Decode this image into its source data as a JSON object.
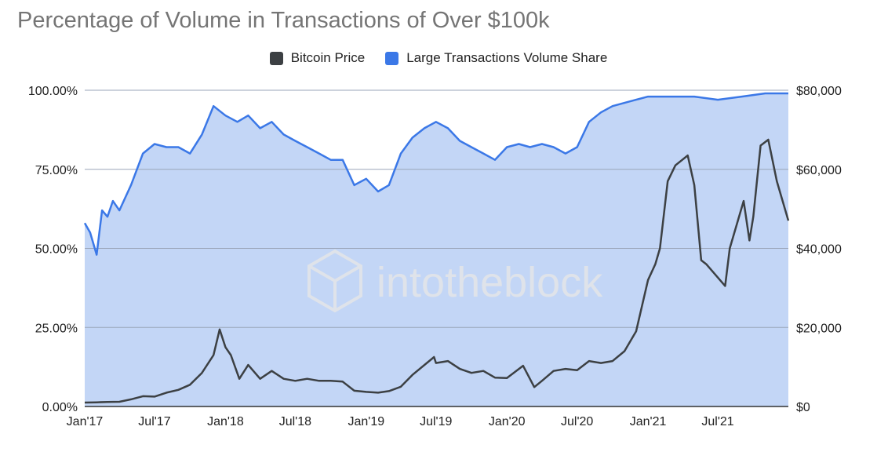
{
  "chart_data": {
    "type": "line",
    "title": "Percentage of Volume in Transactions of Over $100k",
    "watermark": "intotheblock",
    "x_tick_labels": [
      "Jan'17",
      "Jul'17",
      "Jan'18",
      "Jul'18",
      "Jan'19",
      "Jul'19",
      "Jan'20",
      "Jul'20",
      "Jan'21",
      "Jul'21"
    ],
    "y_left_tick_labels": [
      "0.00%",
      "25.00%",
      "50.00%",
      "75.00%",
      "100.00%"
    ],
    "y_left_lim": [
      0,
      100
    ],
    "y_right_tick_labels": [
      "$0",
      "$20,000",
      "$40,000",
      "$60,000",
      "$80,000"
    ],
    "y_right_lim": [
      0,
      80000
    ],
    "grid": true,
    "legend_position": "top-center",
    "series": [
      {
        "name": "Bitcoin Price",
        "color": "#3c4043",
        "axis": "right",
        "points": [
          [
            "2017-01-01",
            1000
          ],
          [
            "2017-02-01",
            1050
          ],
          [
            "2017-03-01",
            1150
          ],
          [
            "2017-04-01",
            1200
          ],
          [
            "2017-05-01",
            1800
          ],
          [
            "2017-06-01",
            2600
          ],
          [
            "2017-07-01",
            2500
          ],
          [
            "2017-08-01",
            3500
          ],
          [
            "2017-09-01",
            4200
          ],
          [
            "2017-10-01",
            5500
          ],
          [
            "2017-11-01",
            8500
          ],
          [
            "2017-12-01",
            13000
          ],
          [
            "2017-12-17",
            19500
          ],
          [
            "2018-01-01",
            15000
          ],
          [
            "2018-01-15",
            13000
          ],
          [
            "2018-02-06",
            7000
          ],
          [
            "2018-03-01",
            10500
          ],
          [
            "2018-04-01",
            7000
          ],
          [
            "2018-05-01",
            9000
          ],
          [
            "2018-06-01",
            7000
          ],
          [
            "2018-07-01",
            6500
          ],
          [
            "2018-08-01",
            7000
          ],
          [
            "2018-09-01",
            6500
          ],
          [
            "2018-10-01",
            6500
          ],
          [
            "2018-11-01",
            6300
          ],
          [
            "2018-12-01",
            4000
          ],
          [
            "2019-01-01",
            3700
          ],
          [
            "2019-02-01",
            3500
          ],
          [
            "2019-03-01",
            3900
          ],
          [
            "2019-04-01",
            5000
          ],
          [
            "2019-05-01",
            8000
          ],
          [
            "2019-06-26",
            12500
          ],
          [
            "2019-07-01",
            11000
          ],
          [
            "2019-08-01",
            11500
          ],
          [
            "2019-09-01",
            9500
          ],
          [
            "2019-10-01",
            8500
          ],
          [
            "2019-11-01",
            9000
          ],
          [
            "2019-12-01",
            7300
          ],
          [
            "2020-01-01",
            7200
          ],
          [
            "2020-02-12",
            10300
          ],
          [
            "2020-03-12",
            4900
          ],
          [
            "2020-04-01",
            6500
          ],
          [
            "2020-05-01",
            9000
          ],
          [
            "2020-06-01",
            9500
          ],
          [
            "2020-07-01",
            9200
          ],
          [
            "2020-08-01",
            11500
          ],
          [
            "2020-09-01",
            11000
          ],
          [
            "2020-10-01",
            11500
          ],
          [
            "2020-11-01",
            14000
          ],
          [
            "2020-12-01",
            19000
          ],
          [
            "2021-01-01",
            32000
          ],
          [
            "2021-01-20",
            36000
          ],
          [
            "2021-02-01",
            40000
          ],
          [
            "2021-02-21",
            57000
          ],
          [
            "2021-03-13",
            61000
          ],
          [
            "2021-04-14",
            63500
          ],
          [
            "2021-05-01",
            56000
          ],
          [
            "2021-05-19",
            37000
          ],
          [
            "2021-06-01",
            36000
          ],
          [
            "2021-07-20",
            30500
          ],
          [
            "2021-08-01",
            40000
          ],
          [
            "2021-09-06",
            52000
          ],
          [
            "2021-09-21",
            42000
          ],
          [
            "2021-10-01",
            48000
          ],
          [
            "2021-10-20",
            66000
          ],
          [
            "2021-11-09",
            67500
          ],
          [
            "2021-12-01",
            57000
          ],
          [
            "2021-12-31",
            47000
          ]
        ]
      },
      {
        "name": "Large Transactions Volume Share",
        "color": "#3b78e7",
        "fill": "#c3d6f6",
        "axis": "left",
        "points": [
          [
            "2017-01-01",
            58
          ],
          [
            "2017-01-15",
            55
          ],
          [
            "2017-02-01",
            48
          ],
          [
            "2017-02-15",
            62
          ],
          [
            "2017-03-01",
            60
          ],
          [
            "2017-03-15",
            65
          ],
          [
            "2017-04-01",
            62
          ],
          [
            "2017-05-01",
            70
          ],
          [
            "2017-06-01",
            80
          ],
          [
            "2017-07-01",
            83
          ],
          [
            "2017-08-01",
            82
          ],
          [
            "2017-09-01",
            82
          ],
          [
            "2017-10-01",
            80
          ],
          [
            "2017-11-01",
            86
          ],
          [
            "2017-12-01",
            95
          ],
          [
            "2018-01-01",
            92
          ],
          [
            "2018-02-01",
            90
          ],
          [
            "2018-03-01",
            92
          ],
          [
            "2018-04-01",
            88
          ],
          [
            "2018-05-01",
            90
          ],
          [
            "2018-06-01",
            86
          ],
          [
            "2018-07-01",
            84
          ],
          [
            "2018-08-01",
            82
          ],
          [
            "2018-09-01",
            80
          ],
          [
            "2018-10-01",
            78
          ],
          [
            "2018-11-01",
            78
          ],
          [
            "2018-12-01",
            70
          ],
          [
            "2019-01-01",
            72
          ],
          [
            "2019-02-01",
            68
          ],
          [
            "2019-03-01",
            70
          ],
          [
            "2019-04-01",
            80
          ],
          [
            "2019-05-01",
            85
          ],
          [
            "2019-06-01",
            88
          ],
          [
            "2019-07-01",
            90
          ],
          [
            "2019-08-01",
            88
          ],
          [
            "2019-09-01",
            84
          ],
          [
            "2019-10-01",
            82
          ],
          [
            "2019-11-01",
            80
          ],
          [
            "2019-12-01",
            78
          ],
          [
            "2020-01-01",
            82
          ],
          [
            "2020-02-01",
            83
          ],
          [
            "2020-03-01",
            82
          ],
          [
            "2020-04-01",
            83
          ],
          [
            "2020-05-01",
            82
          ],
          [
            "2020-06-01",
            80
          ],
          [
            "2020-07-01",
            82
          ],
          [
            "2020-08-01",
            90
          ],
          [
            "2020-09-01",
            93
          ],
          [
            "2020-10-01",
            95
          ],
          [
            "2020-11-01",
            96
          ],
          [
            "2020-12-01",
            97
          ],
          [
            "2021-01-01",
            98
          ],
          [
            "2021-03-01",
            98
          ],
          [
            "2021-05-01",
            98
          ],
          [
            "2021-07-01",
            97
          ],
          [
            "2021-09-01",
            98
          ],
          [
            "2021-11-01",
            99
          ],
          [
            "2021-12-31",
            99
          ]
        ]
      }
    ]
  }
}
